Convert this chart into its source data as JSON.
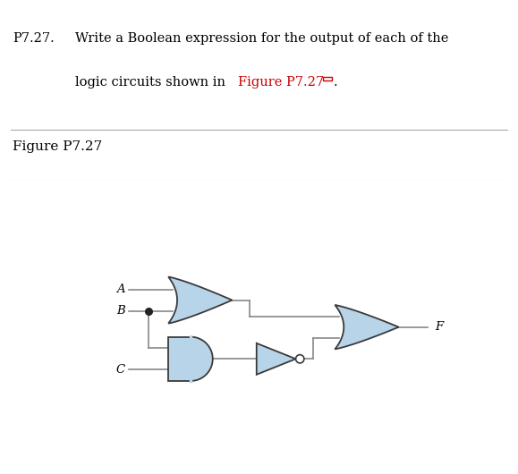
{
  "title_label": "P7.27.",
  "background_color": "#ffffff",
  "text_color": "#000000",
  "link_color": "#cc0000",
  "gate_fill": "#b8d4e8",
  "gate_edge": "#3a3a3a",
  "wire_color": "#888888",
  "label_A": "A",
  "label_B": "B",
  "label_C": "C",
  "label_F": "F",
  "fig_width": 5.79,
  "fig_height": 5.3,
  "dpi": 100
}
